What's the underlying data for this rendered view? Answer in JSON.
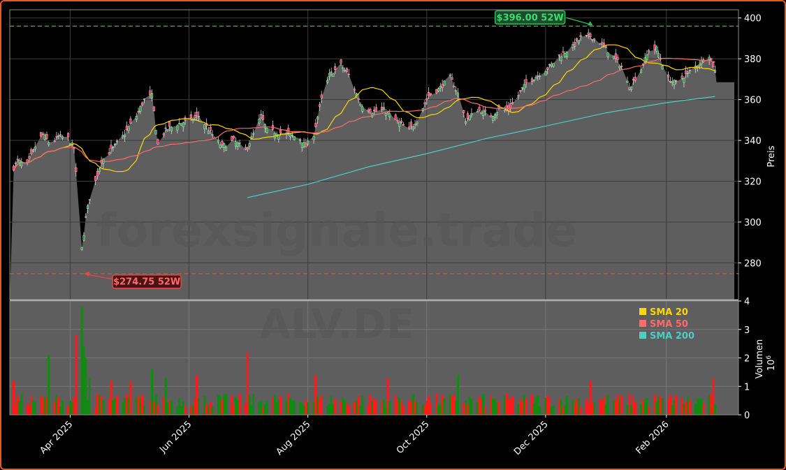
{
  "chart_data": [
    {
      "type": "candlestick",
      "ylabel": "Preis",
      "ylim": [
        262,
        404
      ],
      "yticks": [
        280,
        300,
        320,
        340,
        360,
        380,
        400
      ],
      "x_date_range": [
        "2025-03-01",
        "2026-03-10"
      ],
      "xticks": [
        {
          "date": "2025-04-01",
          "label": "Apr 2025"
        },
        {
          "date": "2025-06-01",
          "label": "Jun 2025"
        },
        {
          "date": "2025-08-01",
          "label": "Aug 2025"
        },
        {
          "date": "2025-10-01",
          "label": "Oct 2025"
        },
        {
          "date": "2025-12-01",
          "label": "Dec 2025"
        },
        {
          "date": "2026-02-01",
          "label": "Feb 2026"
        }
      ],
      "grid": true,
      "close_anchors": [
        [
          "2025-03-01",
          323
        ],
        [
          "2025-03-05",
          330
        ],
        [
          "2025-03-10",
          328
        ],
        [
          "2025-03-14",
          337
        ],
        [
          "2025-03-18",
          343
        ],
        [
          "2025-03-22",
          338
        ],
        [
          "2025-03-26",
          342
        ],
        [
          "2025-03-31",
          341
        ],
        [
          "2025-04-03",
          336
        ],
        [
          "2025-04-07",
          287
        ],
        [
          "2025-04-09",
          302
        ],
        [
          "2025-04-11",
          312
        ],
        [
          "2025-04-14",
          320
        ],
        [
          "2025-04-17",
          330
        ],
        [
          "2025-04-22",
          335
        ],
        [
          "2025-04-28",
          342
        ],
        [
          "2025-05-05",
          352
        ],
        [
          "2025-05-09",
          360
        ],
        [
          "2025-05-13",
          362
        ],
        [
          "2025-05-16",
          338
        ],
        [
          "2025-05-20",
          345
        ],
        [
          "2025-05-26",
          348
        ],
        [
          "2025-06-02",
          350
        ],
        [
          "2025-06-06",
          352
        ],
        [
          "2025-06-12",
          344
        ],
        [
          "2025-06-18",
          337
        ],
        [
          "2025-06-24",
          340
        ],
        [
          "2025-06-30",
          335
        ],
        [
          "2025-07-04",
          343
        ],
        [
          "2025-07-08",
          352
        ],
        [
          "2025-07-11",
          345
        ],
        [
          "2025-07-16",
          344
        ],
        [
          "2025-07-22",
          343
        ],
        [
          "2025-07-28",
          341
        ],
        [
          "2025-07-31",
          337
        ],
        [
          "2025-08-04",
          343
        ],
        [
          "2025-08-08",
          360
        ],
        [
          "2025-08-12",
          372
        ],
        [
          "2025-08-18",
          377
        ],
        [
          "2025-08-22",
          372
        ],
        [
          "2025-08-28",
          358
        ],
        [
          "2025-09-03",
          354
        ],
        [
          "2025-09-09",
          355
        ],
        [
          "2025-09-15",
          350
        ],
        [
          "2025-09-22",
          345
        ],
        [
          "2025-09-26",
          350
        ],
        [
          "2025-10-02",
          362
        ],
        [
          "2025-10-07",
          365
        ],
        [
          "2025-10-13",
          371
        ],
        [
          "2025-10-17",
          363
        ],
        [
          "2025-10-21",
          350
        ],
        [
          "2025-10-27",
          355
        ],
        [
          "2025-11-03",
          352
        ],
        [
          "2025-11-07",
          355
        ],
        [
          "2025-11-12",
          355
        ],
        [
          "2025-11-17",
          362
        ],
        [
          "2025-11-21",
          368
        ],
        [
          "2025-11-27",
          372
        ],
        [
          "2025-12-03",
          376
        ],
        [
          "2025-12-09",
          382
        ],
        [
          "2025-12-15",
          386
        ],
        [
          "2025-12-19",
          390
        ],
        [
          "2025-12-24",
          391
        ],
        [
          "2025-12-29",
          388
        ],
        [
          "2026-01-05",
          381
        ],
        [
          "2026-01-09",
          376
        ],
        [
          "2026-01-13",
          366
        ],
        [
          "2026-01-19",
          375
        ],
        [
          "2026-01-23",
          384
        ],
        [
          "2026-01-27",
          385
        ],
        [
          "2026-02-02",
          370
        ],
        [
          "2026-02-06",
          368
        ],
        [
          "2026-02-12",
          373
        ],
        [
          "2026-02-18",
          378
        ],
        [
          "2026-02-23",
          382
        ],
        [
          "2026-02-26",
          374
        ]
      ],
      "last_close": 368.5,
      "series": [
        {
          "name": "SMA 20",
          "color": "#ffd700"
        },
        {
          "name": "SMA 50",
          "color": "#ff6b6b"
        },
        {
          "name": "SMA 200",
          "color": "#4ecdc4",
          "points": [
            [
              "2025-07-01",
              312
            ],
            [
              "2025-08-01",
              318.5
            ],
            [
              "2025-09-01",
              327
            ],
            [
              "2025-10-01",
              333.5
            ],
            [
              "2025-11-01",
              341
            ],
            [
              "2025-12-01",
              347
            ],
            [
              "2026-01-01",
              353.5
            ],
            [
              "2026-02-01",
              358.5
            ],
            [
              "2026-02-26",
              361.5
            ]
          ]
        }
      ],
      "hlines": [
        {
          "value": 396.0,
          "color": "#2ebd59",
          "label": "$396.00 52W",
          "date": "2025-12-26"
        },
        {
          "value": 274.75,
          "color": "#e84545",
          "label": "$274.75 52W",
          "date": "2025-04-07"
        }
      ],
      "up_color": "#26a641",
      "down_color": "#ff2e63",
      "area_color": "#5e5e5e"
    },
    {
      "type": "bar",
      "ylabel": "Volumen",
      "scale_label": "10^6",
      "ylim": [
        0,
        4
      ],
      "yticks": [
        0,
        1,
        2,
        3,
        4
      ],
      "up_color": "#138a13",
      "down_color": "#ff1a1a",
      "baseline": 0.6,
      "spikes": [
        [
          "2025-03-03",
          1.2
        ],
        [
          "2025-03-21",
          2.1
        ],
        [
          "2025-04-04",
          2.8
        ],
        [
          "2025-04-07",
          3.8
        ],
        [
          "2025-04-08",
          2.4
        ],
        [
          "2025-04-09",
          2.0
        ],
        [
          "2025-04-11",
          1.3
        ],
        [
          "2025-04-22",
          1.2
        ],
        [
          "2025-05-02",
          1.2
        ],
        [
          "2025-05-13",
          1.6
        ],
        [
          "2025-05-20",
          1.3
        ],
        [
          "2025-06-05",
          1.4
        ],
        [
          "2025-07-01",
          2.2
        ],
        [
          "2025-08-05",
          1.4
        ],
        [
          "2025-09-11",
          1.3
        ],
        [
          "2025-10-17",
          1.4
        ],
        [
          "2025-12-24",
          1.2
        ],
        [
          "2026-02-25",
          1.3
        ]
      ]
    }
  ],
  "legend": [
    {
      "label": "SMA 20",
      "color": "#ffd700"
    },
    {
      "label": "SMA 50",
      "color": "#ff6b6b"
    },
    {
      "label": "SMA 200",
      "color": "#4ecdc4"
    }
  ],
  "watermarks": {
    "site": "forexsignale.trade",
    "ticker": "ALV.DE"
  },
  "labels": {
    "preis": "Preis",
    "volumen": "Volumen",
    "scale": "10",
    "scale_exp": "6"
  }
}
